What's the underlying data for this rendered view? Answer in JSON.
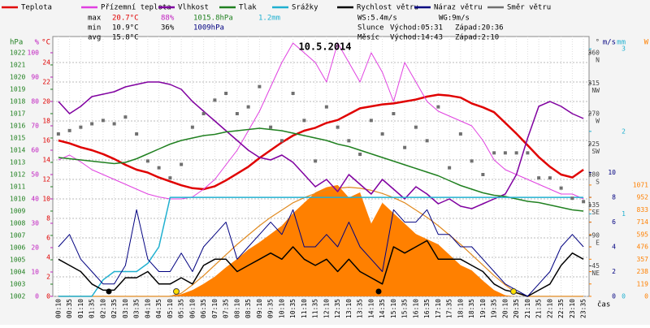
{
  "chart_data": {
    "type": "line",
    "title": "10.5.2014",
    "stats": {
      "max": [
        "max",
        "20.7°C",
        "88%",
        "1015.8hPa",
        "1.2mm"
      ],
      "min": [
        "min",
        "10.9°C",
        "36%",
        "1009hPa"
      ],
      "avg": [
        "avg",
        "15.8°C"
      ],
      "wind": [
        "WS:5.4m/s",
        "WG:9m/s"
      ],
      "sun": [
        "Slunce",
        "Východ:05:31",
        "Západ:20:36"
      ],
      "moon": [
        "Měsíc",
        "Východ:14:43",
        "Západ:2:10"
      ]
    },
    "xlabel": "čas",
    "x": [
      "00:10",
      "00:35",
      "01:10",
      "01:35",
      "02:10",
      "02:35",
      "03:10",
      "03:35",
      "04:10",
      "04:35",
      "05:10",
      "05:35",
      "06:10",
      "06:35",
      "07:10",
      "07:35",
      "08:10",
      "08:35",
      "09:10",
      "09:35",
      "10:10",
      "10:35",
      "11:10",
      "11:35",
      "12:10",
      "12:35",
      "13:10",
      "13:35",
      "14:10",
      "14:35",
      "15:10",
      "15:35",
      "16:10",
      "16:35",
      "17:10",
      "17:35",
      "18:10",
      "18:35",
      "19:10",
      "19:35",
      "20:10",
      "20:35",
      "21:10",
      "21:35",
      "22:10",
      "22:35",
      "23:10",
      "23:35"
    ],
    "ylabel": "°C",
    "ylim": [
      0,
      26.67
    ],
    "yticks": [
      0,
      2,
      4,
      6,
      8,
      10,
      12,
      14,
      16,
      18,
      20,
      22,
      24
    ],
    "y2label": "hPa",
    "y2lim": [
      1002,
      1023.33
    ],
    "y2ticks": [
      1002,
      1003,
      1004,
      1005,
      1006,
      1007,
      1008,
      1009,
      1010,
      1011,
      1012,
      1013,
      1014,
      1015,
      1016,
      1017,
      1018,
      1019,
      1020,
      1021,
      1022
    ],
    "y3label": "%",
    "y3lim": [
      0,
      106.67
    ],
    "y3ticks": [
      0,
      10,
      20,
      30,
      40,
      50,
      60,
      70,
      80,
      90,
      100
    ],
    "y4label": "°",
    "y4lim": [
      0,
      384
    ],
    "y4ticks": [
      45,
      90,
      135,
      180,
      225,
      270,
      315,
      360
    ],
    "y4tick_names": [
      "NE",
      "E",
      "SE",
      "S",
      "SW",
      "W",
      "NW",
      "N"
    ],
    "y5label": "m/s",
    "y5lim": [
      0,
      21
    ],
    "y5ticks": [
      0,
      2,
      4,
      6,
      8,
      10
    ],
    "y6label": "mm",
    "y6lim": [
      0,
      3.15
    ],
    "y6ticks": [
      0,
      1,
      2,
      3
    ],
    "y7label": "W",
    "y7lim": [
      0,
      2500
    ],
    "y7ticks": [
      0,
      119,
      238,
      357,
      476,
      595,
      714,
      833,
      952,
      1071
    ],
    "grid": true,
    "series": [
      {
        "style": "area",
        "axis": "y7",
        "color": "#ff8000",
        "values": [
          0,
          0,
          0,
          0,
          0,
          0,
          0,
          0,
          0,
          0,
          0,
          20,
          60,
          120,
          190,
          280,
          360,
          450,
          520,
          600,
          680,
          800,
          900,
          1000,
          1050,
          1071,
          950,
          1000,
          700,
          900,
          800,
          700,
          600,
          550,
          500,
          400,
          300,
          250,
          150,
          60,
          10,
          0,
          0,
          0,
          0,
          0,
          0,
          0
        ]
      },
      {
        "style": "line",
        "axis": "y7",
        "color": "#e08a20",
        "values": [
          0,
          0,
          0,
          0,
          0,
          0,
          0,
          0,
          0,
          0,
          0,
          30,
          110,
          200,
          300,
          400,
          500,
          590,
          680,
          760,
          830,
          900,
          950,
          990,
          1020,
          1040,
          1050,
          1040,
          1020,
          990,
          950,
          900,
          830,
          760,
          680,
          590,
          500,
          400,
          300,
          200,
          110,
          30,
          0,
          0,
          0,
          0,
          0,
          0
        ]
      },
      {
        "name": "Teplota",
        "style": "line",
        "axis": "y",
        "color": "#e00000",
        "width": 2.5,
        "values": [
          16,
          15.7,
          15.3,
          15,
          14.6,
          14.1,
          13.5,
          13,
          12.7,
          12.2,
          11.8,
          11.4,
          11.1,
          11,
          11.3,
          11.9,
          12.6,
          13.3,
          14.2,
          15,
          15.8,
          16.5,
          17,
          17.3,
          17.8,
          18.1,
          18.7,
          19.3,
          19.5,
          19.7,
          19.8,
          20,
          20.2,
          20.5,
          20.7,
          20.6,
          20.4,
          19.8,
          19.4,
          18.9,
          17.8,
          16.7,
          15.5,
          14.3,
          13.3,
          12.5,
          12.2,
          13
        ]
      },
      {
        "name": "Přízemní teplota",
        "style": "line",
        "axis": "y",
        "color": "#e040e0",
        "width": 1,
        "values": [
          14,
          14.5,
          13.8,
          13,
          12.5,
          12,
          11.5,
          11,
          10.5,
          10.2,
          10,
          10,
          10.2,
          11,
          12,
          13.5,
          15,
          17,
          19,
          21.5,
          24,
          26,
          25,
          24,
          22,
          26,
          24,
          22,
          25,
          23,
          20,
          24,
          22,
          20,
          19,
          18.5,
          18,
          17.5,
          16,
          14,
          13,
          12.5,
          12,
          11.5,
          11,
          10.5,
          10.5,
          10
        ]
      },
      {
        "name": "Vlhkost",
        "style": "line",
        "axis": "y3",
        "color": "#8000a0",
        "width": 1.5,
        "values": [
          80,
          75,
          78,
          82,
          83,
          84,
          86,
          87,
          88,
          88,
          87,
          85,
          80,
          76,
          72,
          68,
          64,
          60,
          57,
          56,
          58,
          55,
          50,
          45,
          48,
          43,
          50,
          46,
          42,
          48,
          44,
          40,
          45,
          42,
          38,
          40,
          37,
          36,
          38,
          40,
          42,
          50,
          65,
          78,
          80,
          78,
          75,
          73
        ]
      },
      {
        "name": "Tlak",
        "style": "line",
        "axis": "y2",
        "color": "#208020",
        "width": 1.5,
        "values": [
          1013.4,
          1013.3,
          1013.2,
          1013.1,
          1013,
          1012.9,
          1013,
          1013.3,
          1013.7,
          1014.1,
          1014.5,
          1014.8,
          1015,
          1015.2,
          1015.3,
          1015.5,
          1015.6,
          1015.7,
          1015.8,
          1015.7,
          1015.6,
          1015.4,
          1015.2,
          1015,
          1014.8,
          1014.5,
          1014.3,
          1014,
          1013.7,
          1013.4,
          1013.1,
          1012.8,
          1012.5,
          1012.2,
          1011.9,
          1011.5,
          1011.1,
          1010.8,
          1010.5,
          1010.3,
          1010.2,
          1010,
          1009.8,
          1009.7,
          1009.5,
          1009.3,
          1009.1,
          1009
        ]
      },
      {
        "name": "Srážky",
        "style": "line",
        "axis": "y6",
        "color": "#20b0d0",
        "width": 1.5,
        "values": [
          0,
          0,
          0,
          0,
          0.2,
          0.3,
          0.3,
          0.3,
          0.4,
          0.6,
          1.2,
          1.2,
          1.2,
          1.2,
          1.2,
          1.2,
          1.2,
          1.2,
          1.2,
          1.2,
          1.2,
          1.2,
          1.2,
          1.2,
          1.2,
          1.2,
          1.2,
          1.2,
          1.2,
          1.2,
          1.2,
          1.2,
          1.2,
          1.2,
          1.2,
          1.2,
          1.2,
          1.2,
          1.2,
          1.2,
          1.2,
          1.2,
          1.2,
          1.2,
          1.2,
          1.2,
          1.2,
          1.2
        ]
      },
      {
        "name": "Rychlost větru",
        "style": "line",
        "axis": "y5",
        "color": "#000000",
        "width": 1.5,
        "values": [
          3,
          2.5,
          2,
          1,
          0.5,
          0.5,
          1.5,
          1.5,
          2,
          1,
          1,
          1.5,
          1,
          2.5,
          3,
          3,
          2,
          2.5,
          3,
          3.5,
          3,
          4,
          3,
          2.5,
          3,
          2,
          3,
          2,
          1.5,
          1,
          4,
          3.5,
          4,
          4.5,
          3,
          3,
          3,
          2.5,
          2,
          1,
          0.5,
          0.3,
          0,
          0.5,
          1,
          2.5,
          3.5,
          3
        ]
      },
      {
        "name": "Náraz větru",
        "style": "line",
        "axis": "y5",
        "color": "#000080",
        "width": 1,
        "values": [
          4,
          5,
          3,
          2,
          1,
          1,
          2.5,
          7,
          3,
          2,
          2,
          3.5,
          2,
          4,
          5,
          6,
          3,
          4,
          5,
          6,
          5,
          7,
          4,
          4,
          5,
          4,
          6,
          4,
          3,
          2,
          7,
          6,
          6,
          7,
          5,
          5,
          4,
          4,
          3,
          2,
          1,
          0.5,
          0,
          1,
          2,
          4,
          5,
          4
        ]
      },
      {
        "name": "Směr větru",
        "style": "scatter",
        "axis": "y4",
        "color": "#707070",
        "values": [
          240,
          245,
          250,
          255,
          260,
          255,
          265,
          240,
          200,
          190,
          175,
          195,
          250,
          270,
          290,
          300,
          270,
          280,
          310,
          250,
          230,
          300,
          260,
          200,
          280,
          250,
          230,
          210,
          260,
          240,
          270,
          220,
          250,
          230,
          280,
          190,
          240,
          200,
          180,
          212,
          212,
          212,
          212,
          175,
          175,
          160,
          145,
          140
        ]
      }
    ]
  }
}
